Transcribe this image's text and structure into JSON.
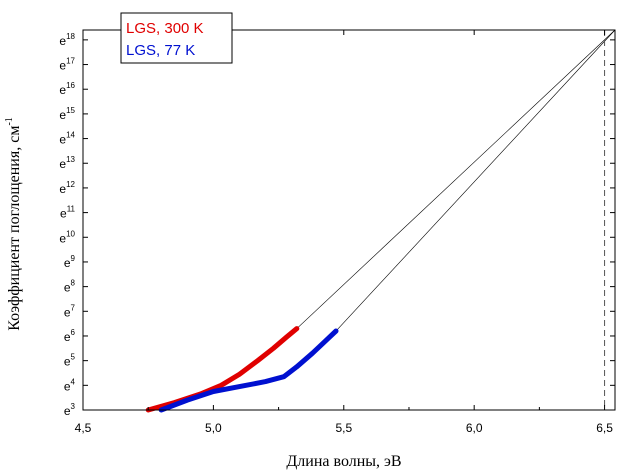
{
  "chart_data": {
    "type": "line",
    "title": "",
    "xlabel": "Длина волны, эВ",
    "ylabel": "Коэффициент поглощения, см",
    "ylabel_superscript": "-1",
    "xlim": [
      4.5,
      6.54
    ],
    "ylim": [
      3,
      18.4
    ],
    "y_scale": "ln",
    "y_tick_base": "e",
    "x_ticks": [
      4.5,
      5.0,
      5.5,
      6.0,
      6.5
    ],
    "x_tick_labels": [
      "4,5",
      "5,0",
      "5,5",
      "6,0",
      "6,5"
    ],
    "y_ticks": [
      3,
      4,
      5,
      6,
      7,
      8,
      9,
      10,
      11,
      12,
      13,
      14,
      15,
      16,
      17,
      18
    ],
    "grid": false,
    "legend_position": "top-left",
    "series": [
      {
        "name": "LGS, 300 K",
        "color": "#e00000",
        "x": [
          4.75,
          4.85,
          4.95,
          5.03,
          5.1,
          5.17,
          5.23,
          5.28,
          5.32
        ],
        "y": [
          3.0,
          3.3,
          3.65,
          4.0,
          4.45,
          5.0,
          5.5,
          5.95,
          6.3
        ]
      },
      {
        "name": "LGS, 77 K",
        "color": "#0010d0",
        "x": [
          4.8,
          4.9,
          5.0,
          5.1,
          5.2,
          5.27,
          5.32,
          5.38,
          5.43,
          5.47
        ],
        "y": [
          3.0,
          3.4,
          3.75,
          3.95,
          4.15,
          4.35,
          4.75,
          5.3,
          5.8,
          6.2
        ]
      }
    ],
    "fit_lines": [
      {
        "color": "#000000",
        "x": [
          5.32,
          6.54
        ],
        "y": [
          6.3,
          18.4
        ]
      },
      {
        "color": "#000000",
        "x": [
          5.47,
          6.54
        ],
        "y": [
          6.2,
          18.4
        ]
      }
    ],
    "reference_line": {
      "x": 6.5,
      "style": "dashed",
      "color": "#555555"
    }
  }
}
